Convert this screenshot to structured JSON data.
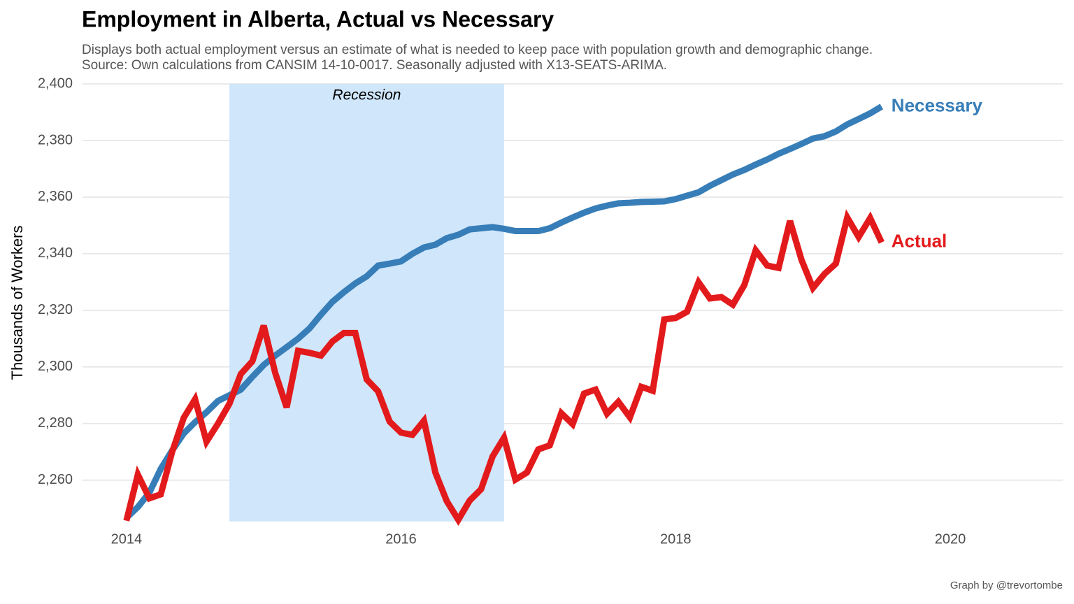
{
  "chart_data": {
    "type": "line",
    "title": "Employment in Alberta, Actual vs Necessary",
    "subtitle": [
      "Displays both actual employment versus an estimate of what is needed to keep pace with population growth and demographic change.",
      "Source: Own calculations from CANSIM 14-10-0017. Seasonally adjusted with X13-SEATS-ARIMA."
    ],
    "y_label": "Thousands of Workers",
    "caption": "Graph by @trevortombe",
    "x": [
      2014,
      2014.083,
      2014.167,
      2014.25,
      2014.333,
      2014.417,
      2014.5,
      2014.583,
      2014.667,
      2014.75,
      2014.833,
      2014.917,
      2015,
      2015.083,
      2015.167,
      2015.25,
      2015.333,
      2015.417,
      2015.5,
      2015.583,
      2015.667,
      2015.75,
      2015.833,
      2015.917,
      2016,
      2016.083,
      2016.167,
      2016.25,
      2016.333,
      2016.417,
      2016.5,
      2016.583,
      2016.667,
      2016.75,
      2016.833,
      2016.917,
      2017,
      2017.083,
      2017.167,
      2017.25,
      2017.333,
      2017.417,
      2017.5,
      2017.583,
      2017.667,
      2017.75,
      2017.833,
      2017.917,
      2018,
      2018.083,
      2018.167,
      2018.25,
      2018.333,
      2018.417,
      2018.5,
      2018.583,
      2018.667,
      2018.75,
      2018.833,
      2018.917,
      2019,
      2019.083,
      2019.167,
      2019.25,
      2019.333,
      2019.417,
      2019.5
    ],
    "series": [
      {
        "name": "Necessary",
        "color": "#377eb8",
        "values": [
          2246.7,
          2250.5,
          2255.6,
          2264,
          2270.5,
          2276.5,
          2280.5,
          2284,
          2288,
          2290,
          2292,
          2296.5,
          2300.7,
          2304,
          2307,
          2310,
          2313.6,
          2318.5,
          2323,
          2326.4,
          2329.5,
          2332,
          2335.8,
          2336.5,
          2337.3,
          2340,
          2342.2,
          2343.2,
          2345.5,
          2346.7,
          2348.6,
          2349,
          2349.4,
          2348.8,
          2348,
          2348,
          2348,
          2349,
          2351,
          2352.8,
          2354.5,
          2356,
          2357,
          2357.8,
          2358,
          2358.3,
          2358.4,
          2358.5,
          2359.3,
          2360.5,
          2361.7,
          2364,
          2366,
          2368,
          2369.6,
          2371.5,
          2373.3,
          2375.3,
          2377,
          2378.8,
          2380.7,
          2381.5,
          2383.2,
          2385.7,
          2387.6,
          2389.6,
          2392
        ]
      },
      {
        "name": "Actual",
        "color": "#e31a1c",
        "values": [
          2245.7,
          2262,
          2253.6,
          2255,
          2270,
          2282,
          2288.6,
          2273.6,
          2280,
          2287,
          2297.5,
          2302,
          2314.6,
          2298,
          2285.7,
          2305.7,
          2305,
          2304,
          2309,
          2312,
          2312,
          2295.6,
          2291.4,
          2280.7,
          2276.8,
          2276,
          2281,
          2262.7,
          2252.6,
          2246,
          2252.8,
          2256.8,
          2268.4,
          2275,
          2260.2,
          2262.7,
          2270.9,
          2272.3,
          2283.7,
          2279.8,
          2290.6,
          2292,
          2283.5,
          2287.7,
          2282.2,
          2293,
          2291.6,
          2316.8,
          2317.3,
          2319.5,
          2329.9,
          2324.2,
          2324.7,
          2322,
          2328.9,
          2341.2,
          2335.8,
          2335,
          2351.6,
          2337.8,
          2327.9,
          2332.8,
          2336.5,
          2352.8,
          2345.9,
          2352.6,
          2344
        ]
      }
    ],
    "shaded_region": {
      "x": [
        2014.75,
        2016.75
      ],
      "label": "Recession",
      "color": "#d0e6fb"
    },
    "xlim": [
      2013.68,
      2020.82
    ],
    "xticks": [
      2014,
      2016,
      2018,
      2020
    ],
    "ylim": [
      2245.4,
      2400
    ],
    "yticks": [
      {
        "value": 2260,
        "label": "2,260"
      },
      {
        "value": 2280,
        "label": "2,280"
      },
      {
        "value": 2300,
        "label": "2,300"
      },
      {
        "value": 2320,
        "label": "2,320"
      },
      {
        "value": 2340,
        "label": "2,340"
      },
      {
        "value": 2360,
        "label": "2,360"
      },
      {
        "value": 2380,
        "label": "2,380"
      },
      {
        "value": 2400,
        "label": "2,400"
      }
    ],
    "grid": true
  }
}
